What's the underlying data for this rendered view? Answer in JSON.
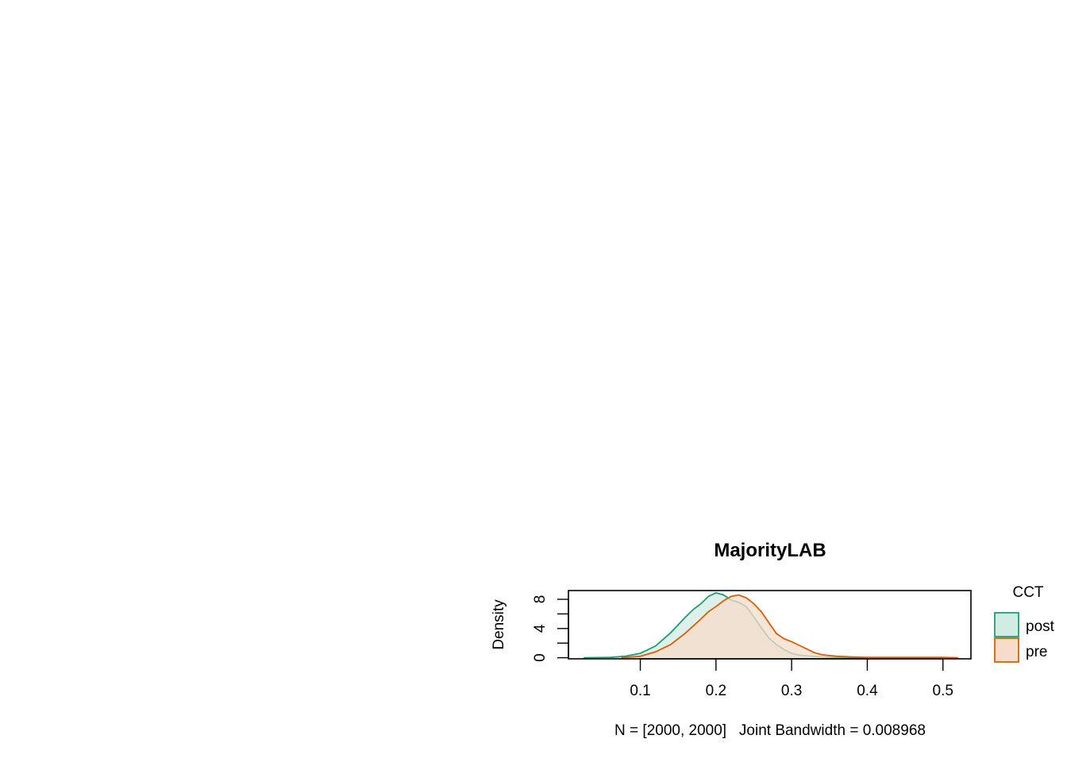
{
  "chart_data": {
    "type": "area",
    "title": "MajorityLAB",
    "xlabel": "N = [2000, 2000]   Joint Bandwidth = 0.008968",
    "ylabel": "Density",
    "xlim": [
      0.005,
      0.537
    ],
    "ylim": [
      -0.15,
      9.2
    ],
    "xticks": [
      0.1,
      0.2,
      0.3,
      0.4,
      0.5
    ],
    "xtick_labels": [
      "0.1",
      "0.2",
      "0.3",
      "0.4",
      "0.5"
    ],
    "yticks": [
      0,
      2,
      4,
      6,
      8
    ],
    "ytick_labels": [
      "0",
      "",
      "4",
      "",
      "8"
    ],
    "legend": {
      "title": "CCT",
      "placement": "right",
      "entries": [
        "post",
        "pre"
      ]
    },
    "series": [
      {
        "name": "post",
        "color": "#1b9e77",
        "fill": "#d2ebe3",
        "x": [
          0.025,
          0.06,
          0.08,
          0.1,
          0.12,
          0.14,
          0.16,
          0.17,
          0.18,
          0.19,
          0.2,
          0.21,
          0.22,
          0.23,
          0.24,
          0.25,
          0.26,
          0.27,
          0.28,
          0.29,
          0.3,
          0.31,
          0.32,
          0.34,
          0.36,
          0.38,
          0.4
        ],
        "values": [
          0.0,
          0.05,
          0.2,
          0.6,
          1.6,
          3.4,
          5.6,
          6.6,
          7.4,
          8.4,
          8.9,
          8.6,
          7.9,
          7.6,
          7.0,
          5.6,
          4.1,
          2.7,
          1.8,
          1.1,
          0.6,
          0.35,
          0.25,
          0.12,
          0.05,
          0.02,
          0.0
        ]
      },
      {
        "name": "pre",
        "color": "#d95f02",
        "fill": "#f7dccb",
        "x": [
          0.075,
          0.1,
          0.12,
          0.14,
          0.16,
          0.18,
          0.19,
          0.2,
          0.21,
          0.22,
          0.23,
          0.24,
          0.25,
          0.26,
          0.27,
          0.28,
          0.29,
          0.3,
          0.31,
          0.32,
          0.33,
          0.34,
          0.36,
          0.38,
          0.4,
          0.45,
          0.5,
          0.52
        ],
        "values": [
          0.0,
          0.2,
          0.8,
          1.8,
          3.4,
          5.3,
          6.3,
          7.0,
          7.8,
          8.4,
          8.6,
          8.2,
          7.4,
          6.3,
          4.8,
          3.3,
          2.6,
          2.2,
          1.7,
          1.2,
          0.7,
          0.4,
          0.2,
          0.1,
          0.05,
          0.05,
          0.05,
          0.0
        ]
      }
    ]
  }
}
